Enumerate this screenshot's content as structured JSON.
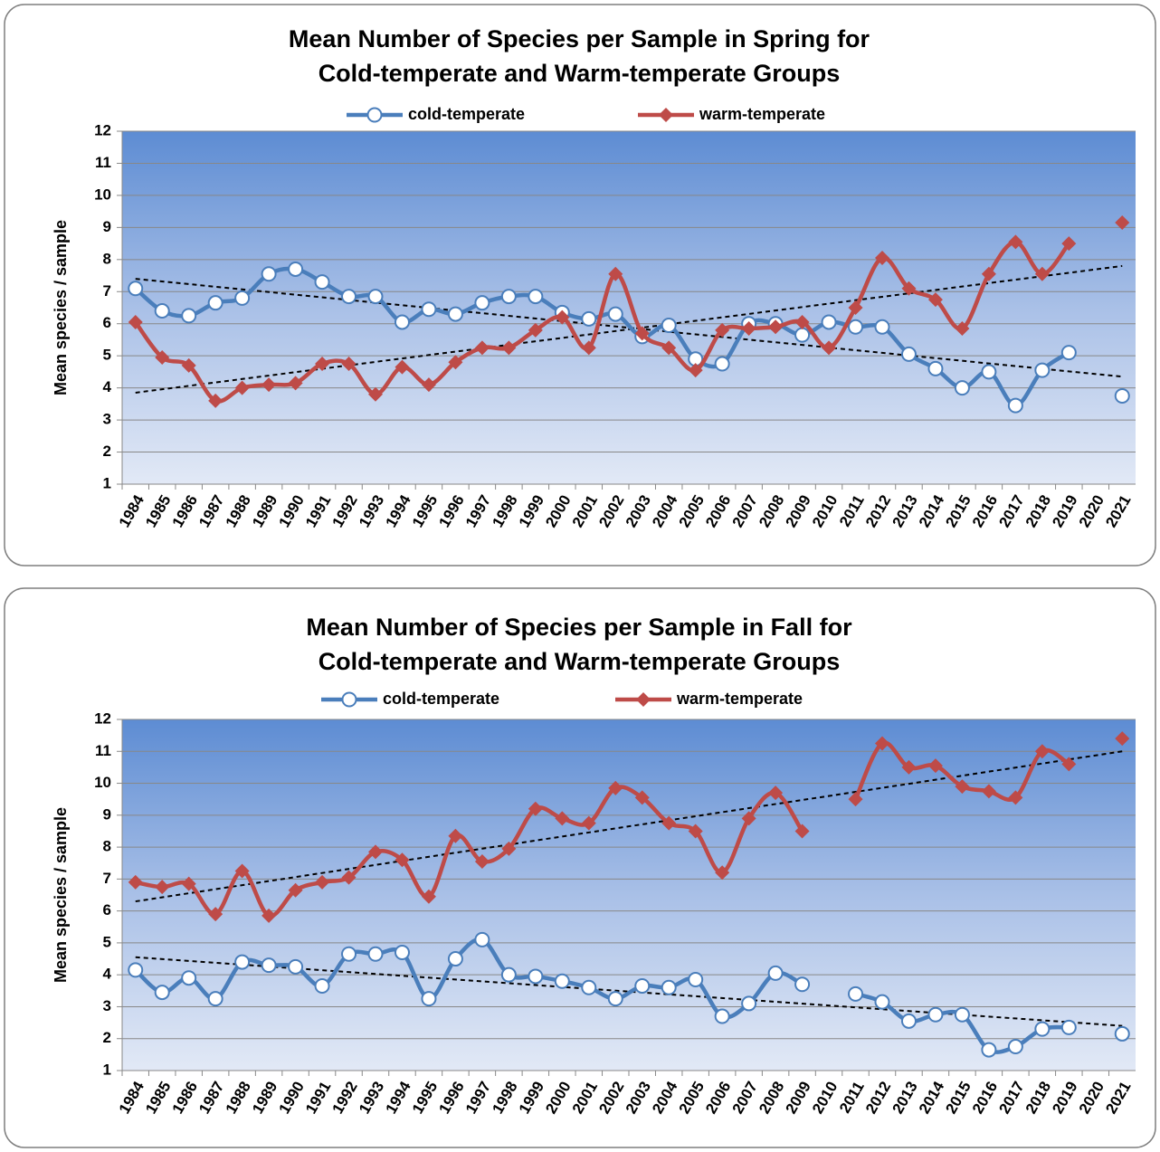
{
  "chart_data": [
    {
      "type": "line",
      "title": [
        "Mean Number of Species per Sample in Spring for",
        "Cold-temperate and Warm-temperate Groups"
      ],
      "y_label": "Mean species / sample",
      "categories": [
        "1984",
        "1985",
        "1986",
        "1987",
        "1988",
        "1989",
        "1990",
        "1991",
        "1992",
        "1993",
        "1994",
        "1995",
        "1996",
        "1997",
        "1998",
        "1999",
        "2000",
        "2001",
        "2002",
        "2003",
        "2004",
        "2005",
        "2006",
        "2007",
        "2008",
        "2009",
        "2010",
        "2011",
        "2012",
        "2013",
        "2014",
        "2015",
        "2016",
        "2017",
        "2018",
        "2019",
        "2020",
        "2021"
      ],
      "series": [
        {
          "name": "cold-temperate",
          "color": "#4a7ebb",
          "marker": "circle",
          "values": [
            7.1,
            6.4,
            6.25,
            6.65,
            6.8,
            7.55,
            7.7,
            7.3,
            6.85,
            6.85,
            6.05,
            6.45,
            6.3,
            6.65,
            6.85,
            6.85,
            6.35,
            6.15,
            6.3,
            5.6,
            5.95,
            4.9,
            4.75,
            6.0,
            6.0,
            5.65,
            6.05,
            5.9,
            5.9,
            5.05,
            4.6,
            4.0,
            4.5,
            3.45,
            4.55,
            5.1,
            null,
            3.75
          ]
        },
        {
          "name": "warm-temperate",
          "color": "#be4b48",
          "marker": "diamond",
          "values": [
            6.05,
            4.95,
            4.7,
            3.6,
            4.0,
            4.1,
            4.15,
            4.75,
            4.75,
            3.8,
            4.65,
            4.1,
            4.8,
            5.25,
            5.25,
            5.8,
            6.2,
            5.25,
            7.55,
            5.7,
            5.25,
            4.55,
            5.8,
            5.85,
            5.9,
            6.05,
            5.25,
            6.5,
            8.05,
            7.1,
            6.75,
            5.85,
            7.55,
            8.55,
            7.55,
            8.5,
            null,
            9.15
          ]
        }
      ],
      "trends": [
        {
          "values": [
            7.4,
            4.35
          ]
        },
        {
          "values": [
            3.85,
            7.8
          ]
        }
      ],
      "ylim": [
        1,
        12
      ],
      "yticks": [
        1,
        2,
        3,
        4,
        5,
        6,
        7,
        8,
        9,
        10,
        11,
        12
      ],
      "grid": true
    },
    {
      "type": "line",
      "title": [
        "Mean Number of Species per Sample in Fall for",
        "Cold-temperate and Warm-temperate Groups"
      ],
      "y_label": "Mean species / sample",
      "categories": [
        "1984",
        "1985",
        "1986",
        "1987",
        "1988",
        "1989",
        "1990",
        "1991",
        "1992",
        "1993",
        "1994",
        "1995",
        "1996",
        "1997",
        "1998",
        "1999",
        "2000",
        "2001",
        "2002",
        "2003",
        "2004",
        "2005",
        "2006",
        "2007",
        "2008",
        "2009",
        "2010",
        "2011",
        "2012",
        "2013",
        "2014",
        "2015",
        "2016",
        "2017",
        "2018",
        "2019",
        "2020",
        "2021"
      ],
      "series": [
        {
          "name": "cold-temperate",
          "color": "#4a7ebb",
          "marker": "circle",
          "values": [
            4.15,
            3.45,
            3.9,
            3.25,
            4.4,
            4.3,
            4.25,
            3.65,
            4.65,
            4.65,
            4.7,
            3.25,
            4.5,
            5.1,
            4.0,
            3.95,
            3.8,
            3.6,
            3.25,
            3.65,
            3.6,
            3.85,
            2.7,
            3.1,
            4.05,
            3.7,
            null,
            3.4,
            3.15,
            2.55,
            2.75,
            2.75,
            1.65,
            1.75,
            2.3,
            2.35,
            null,
            2.15
          ]
        },
        {
          "name": "warm-temperate",
          "color": "#be4b48",
          "marker": "diamond",
          "values": [
            6.9,
            6.75,
            6.85,
            5.9,
            7.25,
            5.85,
            6.65,
            6.9,
            7.05,
            7.85,
            7.6,
            6.45,
            8.35,
            7.55,
            7.95,
            9.2,
            8.9,
            8.75,
            9.85,
            9.55,
            8.75,
            8.5,
            7.2,
            8.9,
            9.7,
            8.5,
            null,
            9.5,
            11.25,
            10.5,
            10.55,
            9.9,
            9.75,
            9.55,
            11.0,
            10.6,
            null,
            11.4
          ]
        }
      ],
      "trends": [
        {
          "values": [
            4.55,
            2.4
          ]
        },
        {
          "values": [
            6.3,
            11.0
          ]
        }
      ],
      "ylim": [
        1,
        12
      ],
      "yticks": [
        1,
        2,
        3,
        4,
        5,
        6,
        7,
        8,
        9,
        10,
        11,
        12
      ],
      "grid": true
    }
  ]
}
